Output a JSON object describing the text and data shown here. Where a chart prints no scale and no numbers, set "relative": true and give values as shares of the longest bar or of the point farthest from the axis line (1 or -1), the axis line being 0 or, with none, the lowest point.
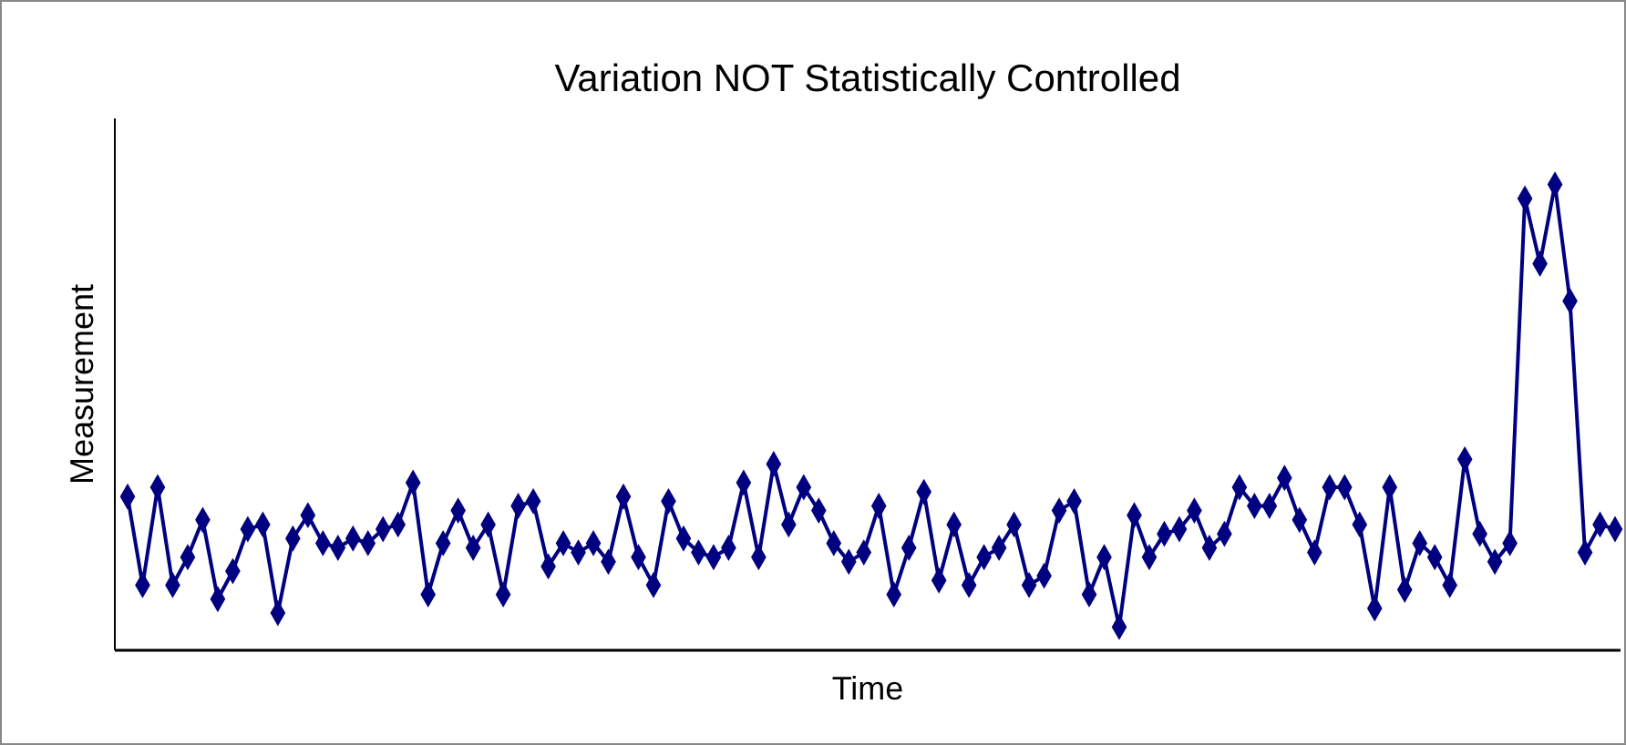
{
  "chart_data": {
    "type": "line",
    "title": "Variation NOT Statistically Controlled",
    "xlabel": "Time",
    "ylabel": "Measurement",
    "relative": true,
    "marker": "diamond",
    "line_style": "solid",
    "categories": [
      null,
      null,
      null,
      null,
      null,
      null,
      null,
      null,
      null,
      null,
      null,
      null,
      null,
      null,
      null,
      null,
      null,
      null,
      null,
      null,
      null,
      null,
      null,
      null,
      null,
      null,
      null,
      null,
      null,
      null,
      null,
      null,
      null,
      null,
      null,
      null,
      null,
      null,
      null,
      null,
      null,
      null,
      null,
      null,
      null,
      null,
      null,
      null,
      null,
      null,
      null,
      null,
      null,
      null,
      null,
      null,
      null,
      null,
      null,
      null,
      null,
      null,
      null,
      null,
      null,
      null,
      null,
      null,
      null,
      null,
      null,
      null,
      null,
      null,
      null,
      null,
      null,
      null,
      null,
      null,
      null,
      null,
      null,
      null,
      null,
      null,
      null,
      null,
      null,
      null,
      null,
      null,
      null,
      null,
      null,
      null,
      null,
      null,
      null,
      null
    ],
    "series": [
      {
        "color": "#000080",
        "values": [
          0.33,
          0.14,
          0.35,
          0.14,
          0.2,
          0.28,
          0.11,
          0.17,
          0.26,
          0.27,
          0.08,
          0.24,
          0.29,
          0.23,
          0.22,
          0.24,
          0.23,
          0.26,
          0.27,
          0.36,
          0.12,
          0.23,
          0.3,
          0.22,
          0.27,
          0.12,
          0.31,
          0.32,
          0.18,
          0.23,
          0.21,
          0.23,
          0.19,
          0.33,
          0.2,
          0.14,
          0.32,
          0.24,
          0.21,
          0.2,
          0.22,
          0.36,
          0.2,
          0.4,
          0.27,
          0.35,
          0.3,
          0.23,
          0.19,
          0.21,
          0.31,
          0.12,
          0.22,
          0.34,
          0.15,
          0.27,
          0.14,
          0.2,
          0.22,
          0.27,
          0.14,
          0.16,
          0.3,
          0.32,
          0.12,
          0.2,
          0.05,
          0.29,
          0.2,
          0.25,
          0.26,
          0.3,
          0.22,
          0.25,
          0.35,
          0.31,
          0.31,
          0.37,
          0.28,
          0.21,
          0.35,
          0.35,
          0.27,
          0.09,
          0.35,
          0.13,
          0.23,
          0.2,
          0.14,
          0.41,
          0.25,
          0.19,
          0.23,
          0.97,
          0.83,
          1,
          0.75,
          0.21,
          0.27,
          0.26
        ]
      }
    ]
  }
}
